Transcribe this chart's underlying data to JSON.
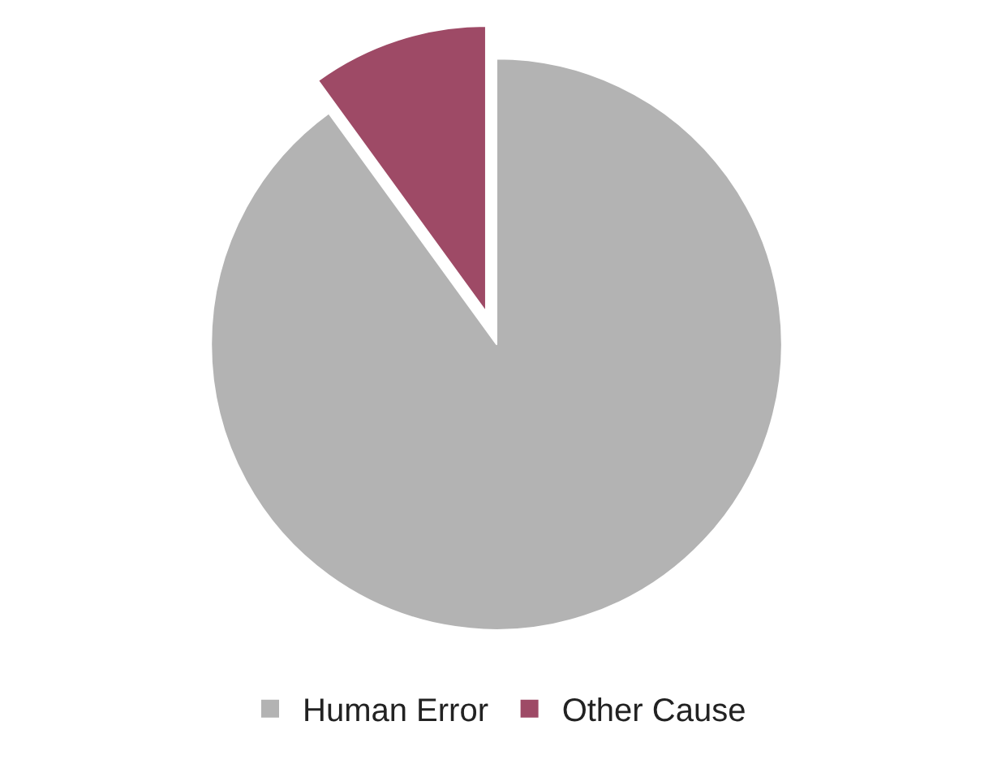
{
  "chart_data": {
    "type": "pie",
    "categories": [
      "Human Error",
      "Other Cause"
    ],
    "values": [
      90,
      10
    ],
    "colors": [
      "#b3b3b3",
      "#9e4a66"
    ],
    "legend": "bottom"
  }
}
